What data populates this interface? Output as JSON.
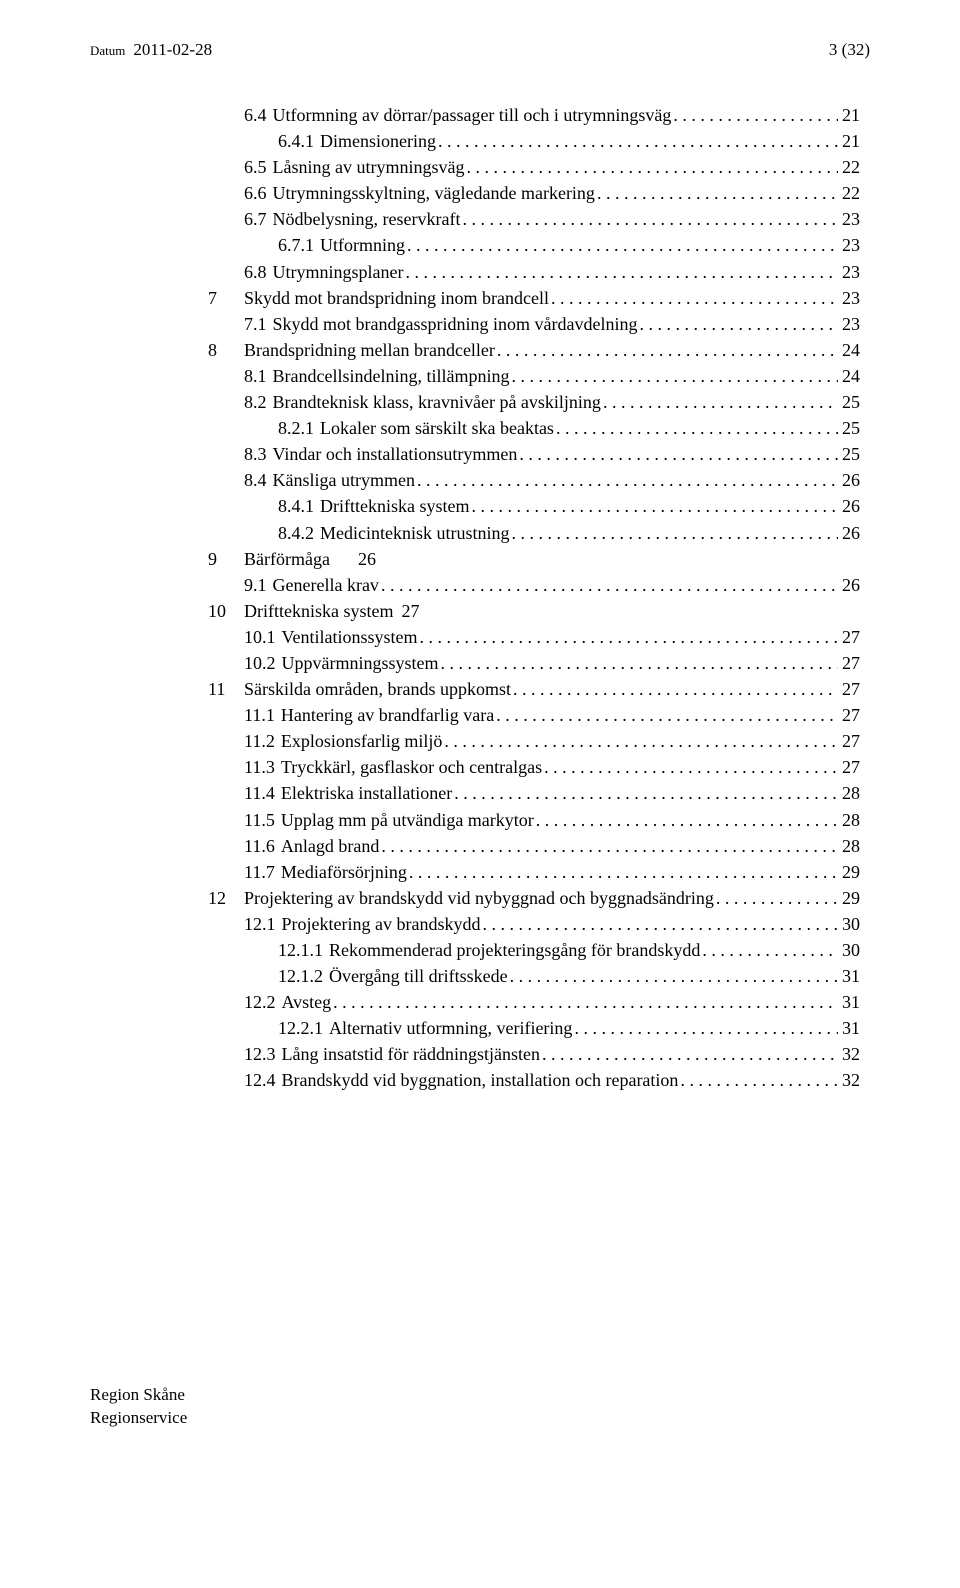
{
  "header": {
    "label": "Datum",
    "date": "2011-02-28",
    "page": "3 (32)"
  },
  "toc": [
    {
      "indent": 1,
      "num": "6.4",
      "title": "Utformning av dörrar/passager till och i utrymningsväg",
      "page": "21"
    },
    {
      "indent": 2,
      "num": "6.4.1",
      "title": "Dimensionering",
      "page": "21"
    },
    {
      "indent": 1,
      "num": "6.5",
      "title": "Låsning av utrymningsväg",
      "page": "22"
    },
    {
      "indent": 1,
      "num": "6.6",
      "title": "Utrymningsskyltning, vägledande markering",
      "page": "22"
    },
    {
      "indent": 1,
      "num": "6.7",
      "title": "Nödbelysning, reservkraft",
      "page": "23"
    },
    {
      "indent": 2,
      "num": "6.7.1",
      "title": "Utformning",
      "page": "23"
    },
    {
      "indent": 1,
      "num": "6.8",
      "title": "Utrymningsplaner",
      "page": "23"
    },
    {
      "indent": 0,
      "num": "7",
      "title": "Skydd mot brandspridning inom brandcell",
      "page": "23"
    },
    {
      "indent": 1,
      "num": "7.1",
      "title": "Skydd mot brandgasspridning inom vårdavdelning",
      "page": "23"
    },
    {
      "indent": 0,
      "num": "8",
      "title": "Brandspridning mellan brandceller",
      "page": "24"
    },
    {
      "indent": 1,
      "num": "8.1",
      "title": "Brandcellsindelning, tillämpning",
      "page": "24"
    },
    {
      "indent": 1,
      "num": "8.2",
      "title": "Brandteknisk klass, kravnivåer på avskiljning",
      "page": "25"
    },
    {
      "indent": 2,
      "num": "8.2.1",
      "title": "Lokaler som särskilt ska beaktas",
      "page": "25"
    },
    {
      "indent": 1,
      "num": "8.3",
      "title": "Vindar och installationsutrymmen",
      "page": "25"
    },
    {
      "indent": 1,
      "num": "8.4",
      "title": "Känsliga utrymmen",
      "page": "26"
    },
    {
      "indent": 2,
      "num": "8.4.1",
      "title": "Drifttekniska system",
      "page": "26"
    },
    {
      "indent": 2,
      "num": "8.4.2",
      "title": "Medicinteknisk utrustning",
      "page": "26"
    },
    {
      "indent": 0,
      "num": "9",
      "title": "Bärförmåga",
      "page": "26",
      "noleader": true
    },
    {
      "indent": 1,
      "num": "9.1",
      "title": "Generella krav",
      "page": "26"
    },
    {
      "indent": 0,
      "num": "10",
      "title": "Drifttekniska system",
      "page": "27",
      "noleader": true,
      "inlinepage": true
    },
    {
      "indent": 1,
      "num": "10.1",
      "title": "Ventilationssystem",
      "page": "27"
    },
    {
      "indent": 1,
      "num": "10.2",
      "title": "Uppvärmningssystem",
      "page": "27"
    },
    {
      "indent": 0,
      "num": "11",
      "title": "Särskilda områden, brands uppkomst",
      "page": "27"
    },
    {
      "indent": 1,
      "num": "11.1",
      "title": "Hantering av brandfarlig vara",
      "page": "27"
    },
    {
      "indent": 1,
      "num": "11.2",
      "title": "Explosionsfarlig miljö",
      "page": "27"
    },
    {
      "indent": 1,
      "num": "11.3",
      "title": "Tryckkärl, gasflaskor och centralgas",
      "page": "27"
    },
    {
      "indent": 1,
      "num": "11.4",
      "title": "Elektriska installationer",
      "page": "28"
    },
    {
      "indent": 1,
      "num": "11.5",
      "title": "Upplag mm på utvändiga markytor",
      "page": "28"
    },
    {
      "indent": 1,
      "num": "11.6",
      "title": "Anlagd brand",
      "page": "28"
    },
    {
      "indent": 1,
      "num": "11.7",
      "title": "Mediaförsörjning",
      "page": "29"
    },
    {
      "indent": 0,
      "num": "12",
      "title": "Projektering av brandskydd vid nybyggnad och byggnadsändring",
      "page": "29"
    },
    {
      "indent": 1,
      "num": "12.1",
      "title": "Projektering av brandskydd",
      "page": "30"
    },
    {
      "indent": 2,
      "num": "12.1.1",
      "title": "Rekommenderad projekteringsgång för brandskydd",
      "page": "30"
    },
    {
      "indent": 2,
      "num": "12.1.2",
      "title": "Övergång till driftsskede",
      "page": "31"
    },
    {
      "indent": 1,
      "num": "12.2",
      "title": "Avsteg",
      "page": "31"
    },
    {
      "indent": 2,
      "num": "12.2.1",
      "title": "Alternativ utformning, verifiering",
      "page": "31"
    },
    {
      "indent": 1,
      "num": "12.3",
      "title": "Lång insatstid för räddningstjänsten",
      "page": "32"
    },
    {
      "indent": 1,
      "num": "12.4",
      "title": "Brandskydd vid byggnation, installation och reparation",
      "page": "32"
    }
  ],
  "footer": {
    "line1": "Region Skåne",
    "line2": "Regionservice"
  }
}
